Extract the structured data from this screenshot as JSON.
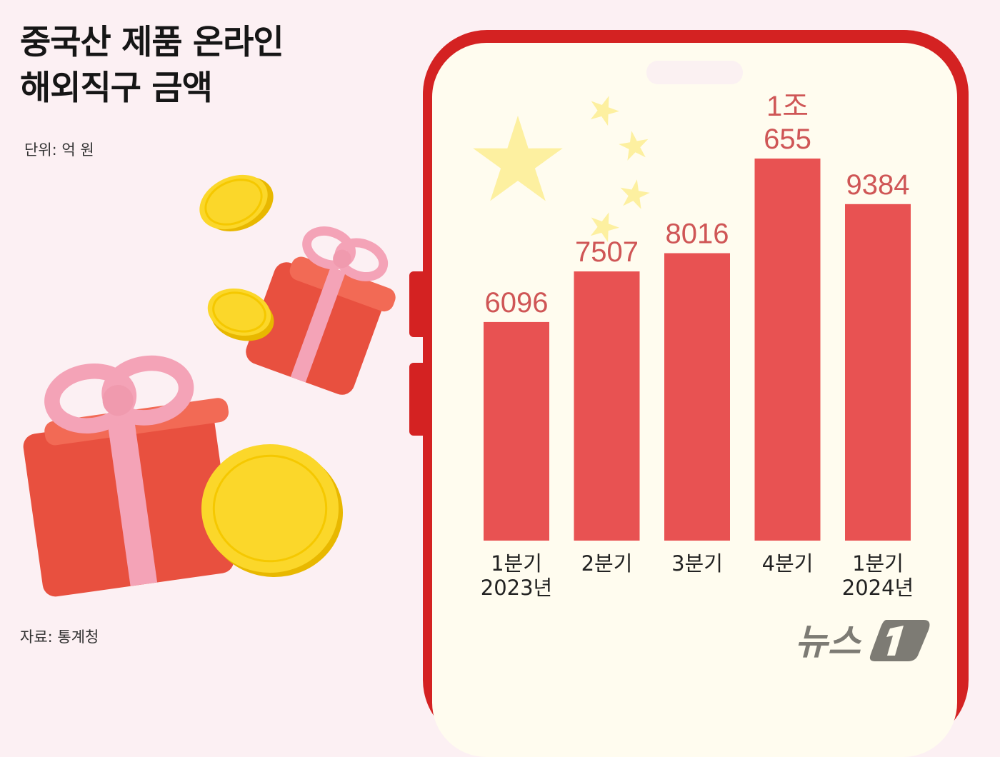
{
  "title_lines": [
    "중국산 제품 온라인",
    "해외직구 금액"
  ],
  "unit": "단위: 억 원",
  "source": "자료: 통계청",
  "logo_text": "뉴스1",
  "colors": {
    "bar": "#e85252",
    "label": "#cf5656",
    "phone": "#d42222",
    "screen": "#fffcef",
    "star": "#fdf0a0",
    "background": "#fcf0f3"
  },
  "chart_data": {
    "type": "bar",
    "categories": [
      "1분기 2023년",
      "2분기",
      "3분기",
      "4분기",
      "1분기 2024년"
    ],
    "category_lines": [
      [
        "1분기",
        "2023년"
      ],
      [
        "2분기"
      ],
      [
        "3분기"
      ],
      [
        "4분기"
      ],
      [
        "1분기",
        "2024년"
      ]
    ],
    "values": [
      6096,
      7507,
      8016,
      10655,
      9384
    ],
    "data_labels": [
      [
        "6096"
      ],
      [
        "7507"
      ],
      [
        "8016"
      ],
      [
        "1조",
        "655"
      ],
      [
        "9384"
      ]
    ],
    "unit": "억 원",
    "ylim": [
      0,
      10655
    ],
    "grid": false
  }
}
